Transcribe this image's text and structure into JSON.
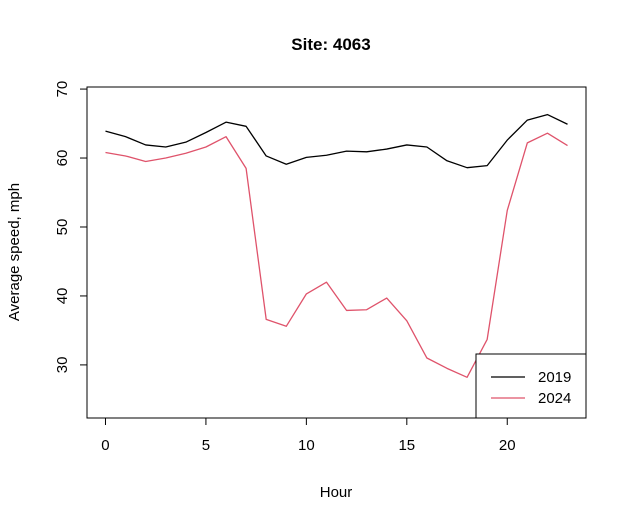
{
  "chart_data": {
    "type": "line",
    "title": "Site: 4063",
    "xlabel": "Hour",
    "ylabel": "Average speed, mph",
    "xlim": [
      -0.92,
      23.92
    ],
    "ylim": [
      22.3,
      70.3
    ],
    "xticks": [
      0,
      5,
      10,
      15,
      20
    ],
    "yticks": [
      30,
      40,
      50,
      60,
      70
    ],
    "grid": false,
    "legend_position": "bottom-right",
    "x": [
      0,
      1,
      2,
      3,
      4,
      5,
      6,
      7,
      8,
      9,
      10,
      11,
      12,
      13,
      14,
      15,
      16,
      17,
      18,
      19,
      20,
      21,
      22,
      23
    ],
    "series": [
      {
        "name": "2019",
        "color": "#000000",
        "values": [
          63.9,
          63.1,
          61.9,
          61.6,
          62.3,
          63.7,
          65.2,
          64.6,
          60.3,
          59.1,
          60.1,
          60.4,
          61.0,
          60.9,
          61.3,
          61.9,
          61.6,
          59.6,
          58.6,
          58.9,
          62.6,
          65.5,
          66.3,
          64.9
        ]
      },
      {
        "name": "2024",
        "color": "#df536b",
        "values": [
          60.8,
          60.3,
          59.5,
          60.0,
          60.7,
          61.6,
          63.1,
          58.5,
          36.6,
          35.6,
          40.3,
          42.0,
          37.9,
          38.0,
          39.7,
          36.4,
          31.0,
          29.5,
          28.2,
          33.7,
          52.4,
          62.2,
          63.6,
          61.8
        ]
      }
    ]
  }
}
